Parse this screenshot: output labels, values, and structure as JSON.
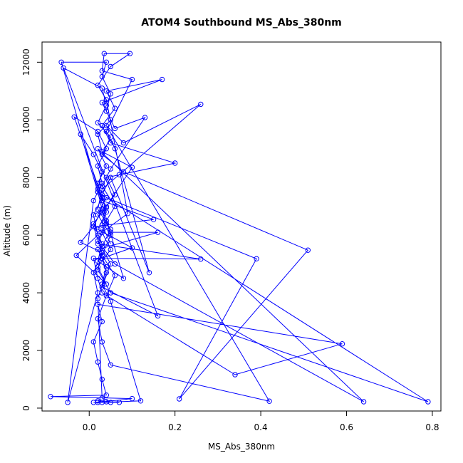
{
  "chart_data": {
    "type": "line",
    "title": "ATOM4 Southbound MS_Abs_380nm",
    "xlabel": "MS_Abs_380nm",
    "ylabel": "Altitude (m)",
    "xlim": [
      -0.11,
      0.82
    ],
    "ylim": [
      -100,
      12700
    ],
    "x_ticks": [
      0.0,
      0.2,
      0.4,
      0.6,
      0.8
    ],
    "x_tick_labels": [
      "0.0",
      "0.2",
      "0.4",
      "0.6",
      "0.8"
    ],
    "y_ticks": [
      0,
      2000,
      4000,
      6000,
      8000,
      10000,
      12000
    ],
    "y_tick_labels": [
      "0",
      "2000",
      "4000",
      "6000",
      "8000",
      "10000",
      "12000"
    ],
    "grid": false,
    "legend": "none",
    "marker": "open-circle",
    "series": [
      {
        "color": "#0000ff",
        "points": [
          [
            0.07,
            200
          ],
          [
            0.02,
            200
          ],
          [
            0.1,
            330
          ],
          [
            -0.09,
            400
          ],
          [
            0.04,
            450
          ],
          [
            0.03,
            1000
          ],
          [
            0.02,
            1600
          ],
          [
            0.01,
            2300
          ],
          [
            0.03,
            3000
          ],
          [
            0.02,
            3600
          ],
          [
            0.59,
            2230
          ],
          [
            0.34,
            1160
          ],
          [
            0.03,
            4000
          ],
          [
            0.02,
            4500
          ],
          [
            0.01,
            5200
          ],
          [
            0.26,
            5170
          ],
          [
            0.02,
            5700
          ],
          [
            0.04,
            6400
          ],
          [
            0.03,
            6900
          ],
          [
            0.02,
            7500
          ],
          [
            0.79,
            220
          ],
          [
            0.05,
            4000
          ],
          [
            0.02,
            4800
          ],
          [
            0.03,
            5400
          ],
          [
            0.01,
            6300
          ],
          [
            0.15,
            6540
          ],
          [
            0.03,
            7200
          ],
          [
            0.02,
            7800
          ],
          [
            0.04,
            8400
          ],
          [
            0.02,
            9000
          ],
          [
            0.64,
            220
          ],
          [
            0.06,
            5000
          ],
          [
            0.03,
            5600
          ],
          [
            0.05,
            6200
          ],
          [
            0.02,
            6900
          ],
          [
            0.03,
            7600
          ],
          [
            0.07,
            8100
          ],
          [
            0.26,
            10540
          ],
          [
            0.08,
            9200
          ],
          [
            0.04,
            9800
          ],
          [
            0.42,
            240
          ],
          [
            0.05,
            1500
          ],
          [
            0.03,
            2300
          ],
          [
            0.02,
            3100
          ],
          [
            0.04,
            3900
          ],
          [
            0.06,
            4600
          ],
          [
            0.03,
            5300
          ],
          [
            0.05,
            6000
          ],
          [
            0.02,
            6700
          ],
          [
            0.04,
            7300
          ],
          [
            0.39,
            5180
          ],
          [
            0.21,
            320
          ],
          [
            0.51,
            5480
          ],
          [
            0.08,
            8200
          ],
          [
            0.03,
            8800
          ],
          [
            0.05,
            9400
          ],
          [
            0.02,
            9900
          ],
          [
            0.04,
            10500
          ],
          [
            0.03,
            11100
          ],
          [
            -0.06,
            11800
          ],
          [
            0.16,
            3200
          ],
          [
            0.03,
            4200
          ],
          [
            0.05,
            5000
          ],
          [
            0.02,
            5800
          ],
          [
            0.04,
            6500
          ],
          [
            0.06,
            7000
          ],
          [
            0.03,
            7700
          ],
          [
            0.05,
            8300
          ],
          [
            0.13,
            10080
          ],
          [
            0.06,
            9700
          ],
          [
            0.04,
            10300
          ],
          [
            0.05,
            10900
          ],
          [
            0.03,
            11500
          ],
          [
            0.04,
            12000
          ],
          [
            -0.065,
            12000
          ],
          [
            0.08,
            4500
          ],
          [
            0.02,
            5100
          ],
          [
            0.03,
            5700
          ],
          [
            0.01,
            6400
          ],
          [
            0.04,
            7000
          ],
          [
            0.1,
            8350
          ],
          [
            0.03,
            8900
          ],
          [
            0.02,
            9500
          ],
          [
            0.05,
            10000
          ],
          [
            0.03,
            10600
          ],
          [
            0.17,
            11400
          ],
          [
            0.04,
            11000
          ],
          [
            0.06,
            10400
          ],
          [
            0.03,
            9800
          ],
          [
            0.05,
            9200
          ],
          [
            0.2,
            8500
          ],
          [
            0.04,
            8000
          ],
          [
            0.06,
            7400
          ],
          [
            0.03,
            6800
          ],
          [
            0.05,
            6100
          ],
          [
            0.16,
            6100
          ],
          [
            0.02,
            5500
          ],
          [
            0.04,
            4900
          ],
          [
            0.03,
            4300
          ],
          [
            0.05,
            3700
          ],
          [
            0.12,
            250
          ],
          [
            0.03,
            200
          ],
          [
            0.02,
            250
          ],
          [
            0.04,
            220
          ],
          [
            0.01,
            200
          ],
          [
            0.05,
            200
          ],
          [
            0.03,
            350
          ],
          [
            0.02,
            3800
          ],
          [
            0.04,
            4700
          ],
          [
            0.03,
            5200
          ],
          [
            0.1,
            5560
          ],
          [
            0.02,
            6200
          ],
          [
            0.04,
            6800
          ],
          [
            0.03,
            7400
          ],
          [
            0.05,
            8000
          ],
          [
            0.14,
            4700
          ],
          [
            0.06,
            9000
          ],
          [
            0.04,
            9600
          ],
          [
            0.1,
            11400
          ],
          [
            0.03,
            11700
          ],
          [
            0.035,
            12300
          ],
          [
            0.095,
            12300
          ],
          [
            0.05,
            11850
          ],
          [
            0.02,
            11200
          ],
          [
            0.04,
            10700
          ],
          [
            0.09,
            6750
          ],
          [
            0.03,
            6100
          ],
          [
            0.05,
            5500
          ],
          [
            0.02,
            4900
          ],
          [
            0.04,
            4300
          ],
          [
            -0.03,
            5300
          ],
          [
            0.02,
            6000
          ],
          [
            0.01,
            6700
          ],
          [
            0.03,
            7300
          ],
          [
            -0.035,
            10100
          ],
          [
            0.02,
            9600
          ],
          [
            0.04,
            9000
          ],
          [
            0.02,
            8400
          ],
          [
            0.03,
            7800
          ],
          [
            0.01,
            7200
          ],
          [
            -0.05,
            200
          ],
          [
            0.02,
            4000
          ],
          [
            0.01,
            4700
          ],
          [
            0.03,
            5400
          ],
          [
            -0.02,
            5750
          ],
          [
            0.01,
            6300
          ],
          [
            0.03,
            6900
          ],
          [
            0.02,
            7500
          ],
          [
            -0.02,
            9500
          ],
          [
            0.01,
            8800
          ],
          [
            0.03,
            8200
          ],
          [
            0.02,
            7600
          ],
          [
            0.04,
            6950
          ],
          [
            0.03,
            6350
          ],
          [
            0.05,
            5700
          ]
        ]
      }
    ]
  }
}
